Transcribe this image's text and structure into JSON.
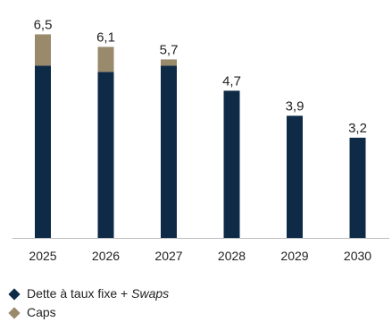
{
  "chart_data": {
    "type": "bar",
    "stacked": true,
    "categories": [
      "2025",
      "2026",
      "2027",
      "2028",
      "2029",
      "2030"
    ],
    "series": [
      {
        "name": "Dette à taux fixe + Swaps",
        "color": "#0e2a47",
        "values": [
          5.5,
          5.3,
          5.5,
          4.7,
          3.9,
          3.2
        ]
      },
      {
        "name": "Caps",
        "color": "#9a8a6c",
        "values": [
          1.0,
          0.8,
          0.2,
          0.0,
          0.0,
          0.0
        ]
      }
    ],
    "totals": [
      "6,5",
      "6,1",
      "5,7",
      "4,7",
      "3,9",
      "3,2"
    ],
    "ylim": [
      0,
      7
    ],
    "grid": false,
    "legend_position": "bottom-left"
  },
  "legend": {
    "item1_prefix": "Dette à taux fixe + ",
    "item1_italic": "Swaps",
    "item2": "Caps"
  }
}
